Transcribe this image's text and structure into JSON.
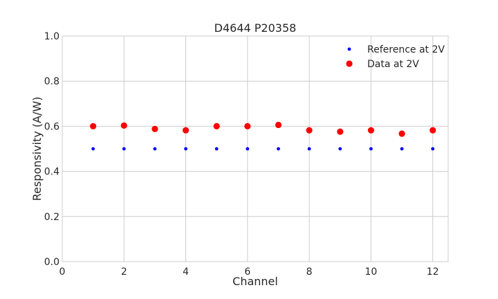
{
  "chart_data": {
    "type": "scatter",
    "title": "D4644 P20358",
    "xlabel": "Channel",
    "ylabel": "Responsivity (A/W)",
    "xlim": [
      0,
      12.5
    ],
    "ylim": [
      0,
      1.0
    ],
    "xticks": [
      0,
      2,
      4,
      6,
      8,
      10,
      12
    ],
    "yticks": [
      0.0,
      0.2,
      0.4,
      0.6,
      0.8,
      1.0
    ],
    "ytick_labels": [
      "0.0",
      "0.2",
      "0.4",
      "0.6",
      "0.8",
      "1.0"
    ],
    "grid": true,
    "legend_position": "top-right",
    "x": [
      1,
      2,
      3,
      4,
      5,
      6,
      7,
      8,
      9,
      10,
      11,
      12
    ],
    "series": [
      {
        "name": "Reference at 2V",
        "color": "#0000ff",
        "marker": "small-dot",
        "values": [
          0.5,
          0.5,
          0.5,
          0.5,
          0.5,
          0.5,
          0.5,
          0.5,
          0.5,
          0.5,
          0.5,
          0.5
        ]
      },
      {
        "name": "Data at 2V",
        "color": "#ff0000",
        "marker": "large-dot",
        "values": [
          0.6,
          0.603,
          0.588,
          0.582,
          0.6,
          0.6,
          0.606,
          0.582,
          0.576,
          0.582,
          0.567,
          0.582
        ]
      }
    ]
  }
}
